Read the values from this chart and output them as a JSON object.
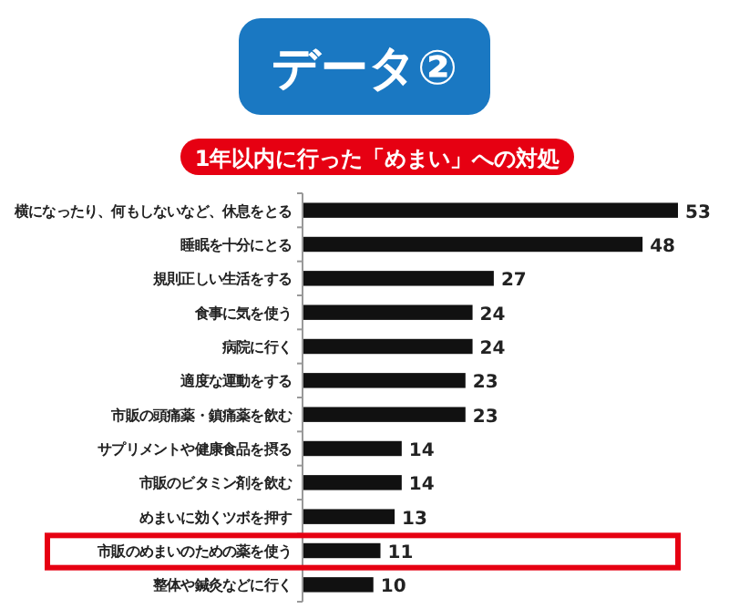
{
  "chart_data": {
    "type": "bar",
    "orientation": "horizontal",
    "title": "データ②",
    "subtitle": "1年以内に行った「めまい」への対処",
    "categories": [
      "横になったり、何もしないなど、休息をとる",
      "睡眠を十分にとる",
      "規則正しい生活をする",
      "食事に気を使う",
      "病院に行く",
      "適度な運動をする",
      "市販の頭痛薬・鎮痛薬を飲む",
      "サプリメントや健康食品を摂る",
      "市販のビタミン剤を飲む",
      "めまいに効くツボを押す",
      "市販のめまいのための薬を使う",
      "整体や鍼灸などに行く"
    ],
    "values": [
      53,
      48,
      27,
      24,
      24,
      23,
      23,
      14,
      14,
      13,
      11,
      10
    ],
    "color": "#111111",
    "data_labels": true
  }
}
